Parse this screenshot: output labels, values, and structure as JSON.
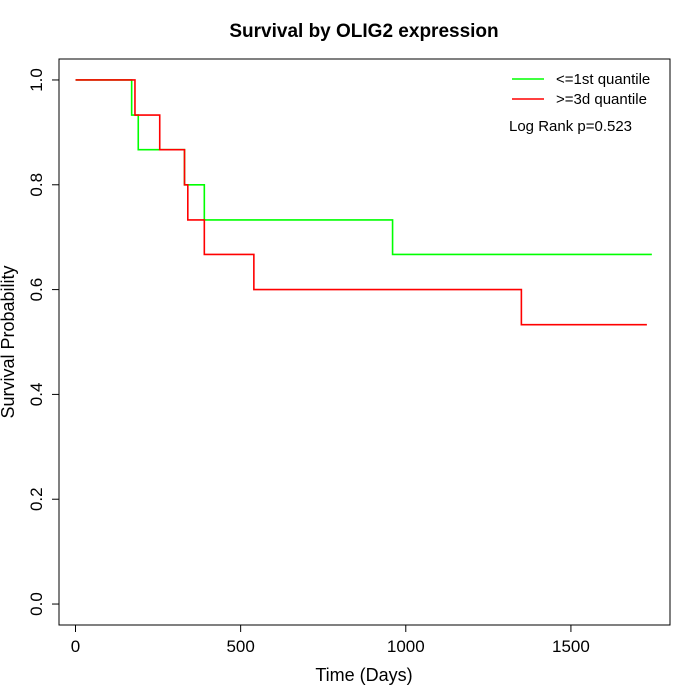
{
  "chart_data": {
    "type": "line",
    "title": "Survival by OLIG2 expression",
    "xlabel": "Time (Days)",
    "ylabel": "Survival Probability",
    "xlim": [
      -50,
      1800
    ],
    "ylim": [
      -0.04,
      1.04
    ],
    "x_ticks": [
      0,
      500,
      1000,
      1500
    ],
    "x_tick_labels": [
      "0",
      "500",
      "1000",
      "1500"
    ],
    "y_ticks": [
      0.0,
      0.2,
      0.4,
      0.6,
      0.8,
      1.0
    ],
    "y_tick_labels": [
      "0.0",
      "0.2",
      "0.4",
      "0.6",
      "0.8",
      "1.0"
    ],
    "grid": false,
    "legend_position": "top-right",
    "annotation": "Log Rank p=0.523",
    "series": [
      {
        "name": "<=1st quantile",
        "color": "#00ff00",
        "step": true,
        "x": [
          0,
          170,
          190,
          330,
          390,
          960,
          1745
        ],
        "y": [
          1.0,
          0.933,
          0.867,
          0.8,
          0.733,
          0.667,
          0.667
        ]
      },
      {
        "name": ">=3d quantile",
        "color": "#ff0000",
        "step": true,
        "x": [
          0,
          180,
          255,
          330,
          340,
          390,
          540,
          1350,
          1730
        ],
        "y": [
          1.0,
          0.933,
          0.867,
          0.8,
          0.733,
          0.667,
          0.6,
          0.533,
          0.533
        ]
      }
    ]
  }
}
